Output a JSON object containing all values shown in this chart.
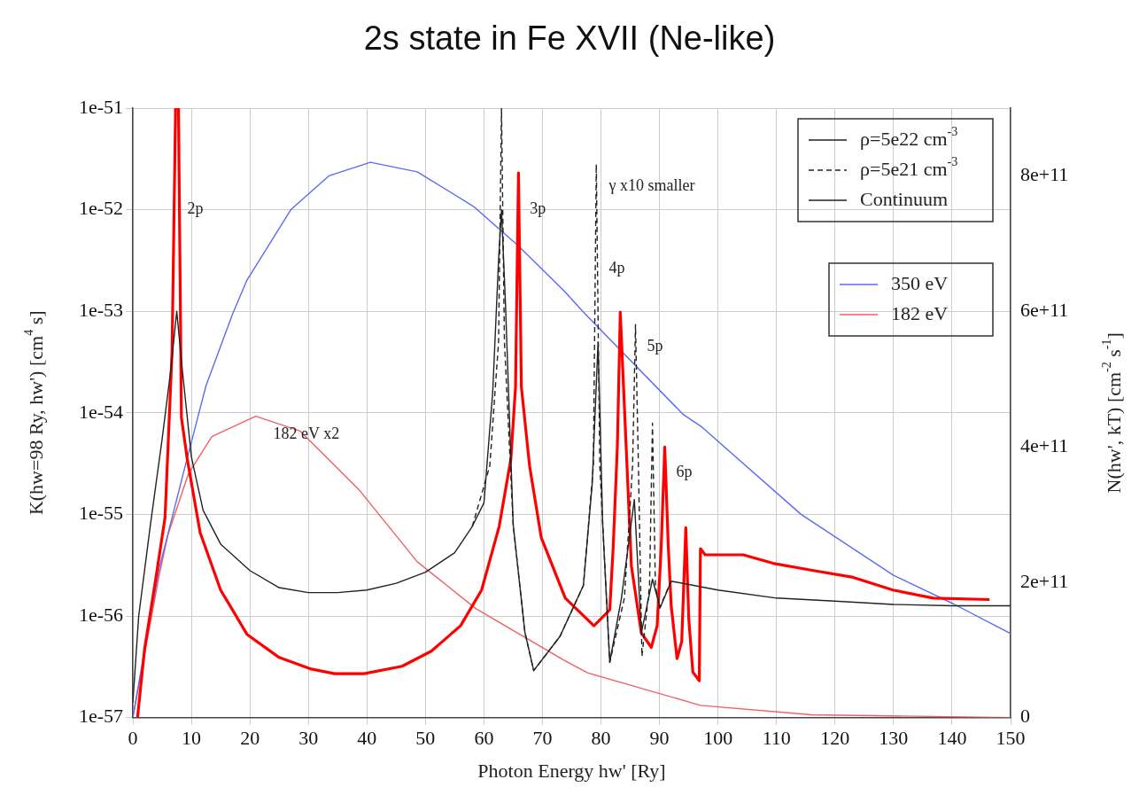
{
  "chart_data": {
    "type": "line",
    "title": "2s state in Fe XVII (Ne-like)",
    "xlabel": "Photon Energy hw' [Ry]",
    "ylabel": "K(hw=98 Ry, hw') [cm$^{4}$ s]",
    "y2label": "N(hw', kT) [cm$^{-2}$ s$^{-1}$]",
    "xlim": [
      0,
      150
    ],
    "xticks": [
      0,
      10,
      20,
      30,
      40,
      50,
      60,
      70,
      80,
      90,
      100,
      110,
      120,
      130,
      140,
      150
    ],
    "ylim": [
      1e-57,
      1e-51
    ],
    "yticks": [
      1e-57,
      1e-56,
      1e-55,
      1e-54,
      1e-53,
      1e-52,
      1e-51
    ],
    "y2lim": [
      0,
      900000000000
    ],
    "y2ticks": [
      {
        "value": 0,
        "label": "0"
      },
      {
        "value": 200000000000,
        "label": "2e+11"
      },
      {
        "value": 400000000000,
        "label": "4e+11"
      },
      {
        "value": 600000000000,
        "label": "6e+11"
      },
      {
        "value": 800000000000,
        "label": "8e+11"
      }
    ],
    "log": "y",
    "grid": true,
    "legend": "top right",
    "series": [
      {
        "name": "ρ=5e22 cm$^{-3}$",
        "color": "#222222",
        "line_style": "solid",
        "x": [
          0,
          1,
          3,
          5,
          6.5,
          7.5,
          8.5,
          10,
          12,
          15,
          20,
          25,
          30,
          35,
          40,
          45,
          50,
          55,
          58,
          60,
          61.5,
          62.5,
          63,
          63.7,
          65,
          67,
          68.5,
          73,
          77,
          78.5,
          79.5,
          80.3,
          81.5,
          83.5,
          85.7,
          86.9,
          88.8,
          90.1,
          92
        ],
        "values": [
          1.4e-57,
          1e-56,
          7.9e-56,
          5.5e-55,
          2.7e-54,
          1e-53,
          2.5e-54,
          3.7e-55,
          1.1e-55,
          5.1e-56,
          2.8e-56,
          1.9e-56,
          1.7e-56,
          1.7e-56,
          1.8e-56,
          2.1e-56,
          2.7e-56,
          4.2e-56,
          7.6e-56,
          1.3e-55,
          1.6e-54,
          3.2e-53,
          1e-52,
          1.1e-53,
          7.9e-56,
          6.9e-57,
          2.9e-57,
          6.3e-57,
          2e-56,
          2e-55,
          5e-54,
          7.9e-56,
          3.5e-57,
          1.5e-56,
          1.4e-55,
          6.8e-57,
          2.3e-56,
          1.2e-56,
          2.2e-56
        ]
      },
      {
        "name": "ρ=5e21 cm$^{-3}$",
        "color": "#222222",
        "line_style": "dashed",
        "x": [
          58,
          61,
          62.5,
          63,
          63.5,
          65,
          67,
          68.5,
          73,
          77,
          78.7,
          79.2,
          79.8,
          81.5,
          84,
          85.4,
          85.9,
          86.4,
          87,
          88.3,
          88.8,
          89.3,
          90,
          92
        ],
        "values": [
          7.6e-56,
          3e-55,
          5e-54,
          1e-51,
          5e-54,
          7.9e-56,
          6.9e-57,
          2.9e-57,
          6.3e-57,
          2e-56,
          3e-55,
          2.8e-52,
          3e-55,
          3.5e-57,
          1.5e-56,
          3e-55,
          7.4e-54,
          3e-55,
          4e-57,
          2e-56,
          7.9e-55,
          2e-56,
          1.2e-56,
          2.2e-56
        ]
      },
      {
        "name": "Continuum",
        "color": "#222222",
        "line_style": "solid",
        "x": [
          92,
          100,
          110,
          120,
          130,
          140,
          150
        ],
        "values": [
          2.2e-56,
          1.8e-56,
          1.5e-56,
          1.4e-56,
          1.3e-56,
          1.26e-56,
          1.26e-56
        ]
      },
      {
        "color": "#ff0000",
        "line_style": "solid",
        "x": [
          0.8,
          2,
          4,
          5.5,
          6.7,
          7.3,
          7.8,
          8.3,
          9.3,
          11.5,
          15,
          19.5,
          25,
          30.5,
          34.5,
          39.5,
          46,
          51,
          56,
          59.6,
          62.6,
          64.6,
          65.4,
          65.9,
          66.4,
          67.8,
          69.8,
          73.9,
          78.8,
          81.5,
          82.1,
          82.8,
          83.3,
          84.3,
          85.2,
          86.9,
          88.6,
          89.6,
          90.3,
          90.9,
          91.5,
          92,
          93,
          93.8,
          94.5,
          95,
          95.7,
          96.8,
          97,
          97.8,
          104.3,
          109.4,
          116.3,
          123.1,
          129.9,
          136.8,
          146.4
        ],
        "values": [
          1e-57,
          4.7e-57,
          2.5e-56,
          9.3e-56,
          4e-54,
          1e-51,
          1e-51,
          9e-55,
          3.5e-55,
          6.6e-56,
          1.8e-56,
          6.6e-57,
          3.9e-57,
          3e-57,
          2.7e-57,
          2.7e-57,
          3.2e-57,
          4.5e-57,
          8e-57,
          1.8e-56,
          7.6e-56,
          3.5e-55,
          1.8e-54,
          2.3e-52,
          1.8e-54,
          3e-55,
          5.9e-56,
          1.5e-56,
          8e-57,
          1.15e-56,
          4.9e-56,
          4.7e-55,
          9.8e-54,
          4.7e-55,
          3.1e-56,
          6.8e-57,
          4.9e-57,
          8e-57,
          4.9e-56,
          4.6e-55,
          4.9e-56,
          1.26e-56,
          3.8e-57,
          5.6e-57,
          7.4e-56,
          9.5e-57,
          2.8e-57,
          2.3e-57,
          4.6e-56,
          4e-56,
          4e-56,
          3.3e-56,
          2.8e-56,
          2.4e-56,
          1.8e-56,
          1.5e-56,
          1.45e-56
        ]
      },
      {
        "name": "350 eV",
        "color": "#5a6cf0",
        "axis": "y2",
        "line_style": "solid",
        "x": [
          0,
          2,
          4.5,
          8.6,
          11,
          12.5,
          17,
          19.5,
          27,
          33.5,
          40.6,
          48.6,
          58.2,
          65.7,
          73.7,
          77.3,
          94,
          97.1,
          114.2,
          130,
          140.2,
          150
        ],
        "values": [
          0,
          100000000000,
          220000000000,
          360000000000,
          440000000000,
          490000000000,
          595000000000,
          646000000000,
          750000000000,
          800000000000,
          820000000000,
          806000000000,
          755000000000,
          698000000000,
          630000000000,
          596000000000,
          448000000000,
          430000000000,
          300000000000,
          210000000000,
          168000000000,
          124000000000
        ]
      },
      {
        "name": "182 eV",
        "color": "#f06060",
        "axis": "y2",
        "line_style": "solid",
        "x": [
          0,
          4.5,
          6,
          9.5,
          13.5,
          21,
          28.6,
          38.6,
          48.6,
          58.6,
          73.6,
          77.7,
          97,
          116,
          150
        ],
        "values": [
          0,
          210000000000,
          270000000000,
          360000000000,
          415000000000,
          445000000000,
          423000000000,
          337000000000,
          230000000000,
          161000000000,
          85000000000,
          66000000000,
          18000000000,
          4000000000,
          0
        ]
      }
    ],
    "annotations": [
      {
        "text": "2p",
        "x": 7.96,
        "y": 1e-52
      },
      {
        "text": "3p",
        "x": 66.5,
        "y": 1e-52
      },
      {
        "text": "γ x10 smaller",
        "x": 80,
        "y": 1.7e-52
      },
      {
        "text": "4p",
        "x": 80,
        "y": 2.6e-53
      },
      {
        "text": "5p",
        "x": 86.5,
        "y": 4.5e-54
      },
      {
        "text": "6p",
        "x": 91.5,
        "y": 2.6e-55
      },
      "182 eV x2"
    ]
  }
}
